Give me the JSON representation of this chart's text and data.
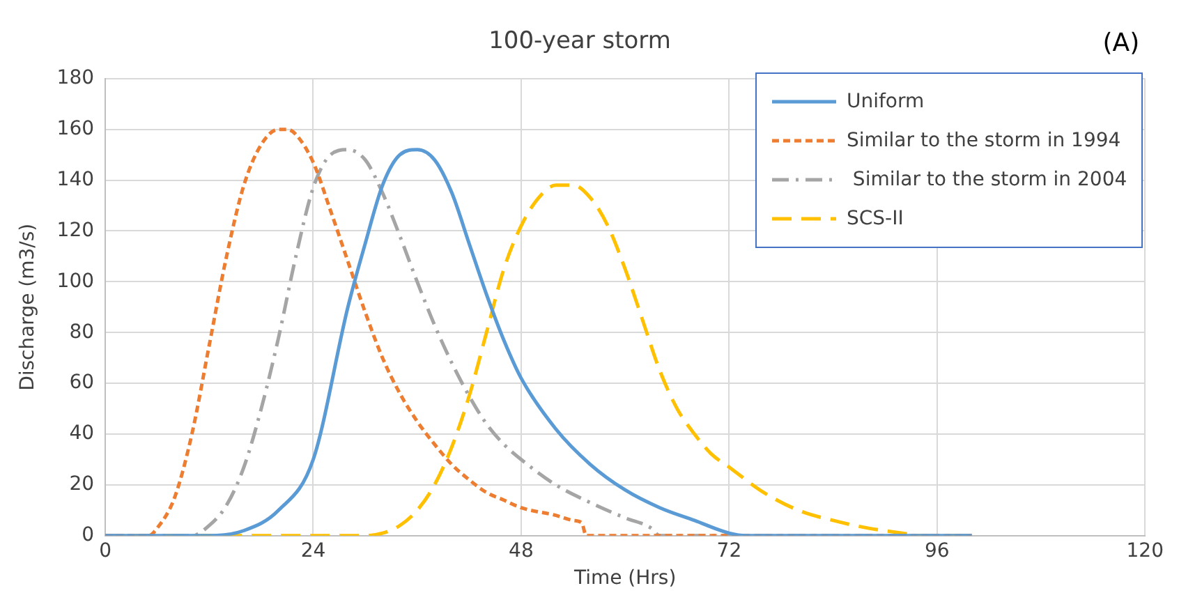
{
  "chart_data": {
    "type": "line",
    "title": "100-year storm",
    "xlabel": "Time (Hrs)",
    "ylabel": "Discharge (m3/s)",
    "annotations": [
      "(A)"
    ],
    "xlim": [
      0,
      120
    ],
    "xticks": [
      0,
      24,
      48,
      72,
      96,
      120
    ],
    "ylim": [
      0,
      180
    ],
    "yticks": [
      0,
      20,
      40,
      60,
      80,
      100,
      120,
      140,
      160,
      180
    ],
    "grid": true,
    "legend": "top right",
    "marker": "none",
    "series": [
      {
        "name": "Uniform",
        "color": "#5b9bd5",
        "line_style": "solid",
        "x": [
          0,
          12,
          16,
          20,
          24,
          28,
          30,
          32,
          34,
          36,
          38,
          40,
          42,
          44,
          46,
          48,
          52,
          56,
          60,
          64,
          68,
          72,
          74,
          100
        ],
        "values": [
          0,
          0,
          2,
          10,
          30,
          90,
          115,
          138,
          150,
          152,
          148,
          135,
          115,
          95,
          77,
          62,
          42,
          28,
          18,
          11,
          6,
          1,
          0,
          0
        ]
      },
      {
        "name": "Similar to the storm in 1994",
        "color": "#ed7d31",
        "line_style": "dotted",
        "x": [
          0,
          5,
          6,
          8,
          10,
          12,
          14,
          16,
          18,
          20,
          21,
          22,
          24,
          26,
          28,
          30,
          32,
          34,
          36,
          38,
          40,
          42,
          44,
          46,
          48,
          52,
          54,
          55,
          55.5,
          100
        ],
        "values": [
          0,
          0,
          3,
          15,
          40,
          75,
          110,
          138,
          154,
          160,
          160,
          158,
          147,
          128,
          108,
          88,
          70,
          56,
          45,
          36,
          28,
          22,
          17,
          14,
          11,
          8,
          6,
          5,
          0,
          0
        ]
      },
      {
        "name": " Similar to the storm in 2004",
        "color": "#a5a5a5",
        "line_style": "dashdot",
        "x": [
          0,
          10,
          12,
          14,
          16,
          18,
          20,
          22,
          24,
          26,
          28,
          30,
          32,
          34,
          36,
          38,
          40,
          42,
          44,
          46,
          48,
          52,
          56,
          60,
          63,
          64,
          100
        ],
        "values": [
          0,
          0,
          4,
          12,
          27,
          50,
          78,
          110,
          137,
          150,
          152,
          148,
          135,
          118,
          100,
          83,
          68,
          55,
          44,
          36,
          30,
          20,
          13,
          7,
          3,
          0,
          0
        ]
      },
      {
        "name": "SCS-II",
        "color": "#ffc000",
        "line_style": "dashed",
        "x": [
          0,
          30,
          32,
          34,
          36,
          38,
          40,
          42,
          44,
          46,
          48,
          50,
          52,
          54,
          56,
          58,
          60,
          62,
          64,
          66,
          68,
          70,
          72,
          76,
          80,
          84,
          88,
          92,
          94,
          100
        ],
        "values": [
          0,
          0,
          1,
          4,
          10,
          20,
          35,
          55,
          80,
          105,
          122,
          133,
          138,
          138,
          133,
          122,
          105,
          85,
          65,
          50,
          40,
          32,
          27,
          17,
          10,
          6,
          3,
          1,
          0,
          0
        ]
      }
    ]
  }
}
